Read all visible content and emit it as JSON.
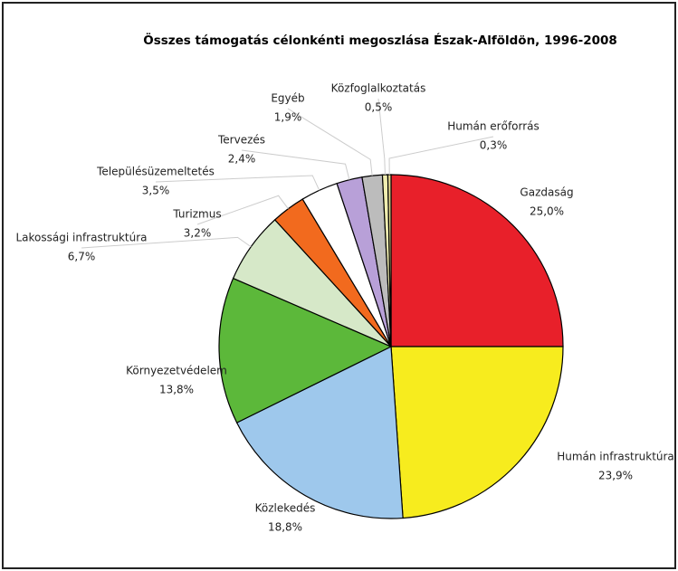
{
  "chart_data": {
    "type": "pie",
    "title": "Összes támogatás célonkénti megoszlása Észak-Alföldön, 1996-2008",
    "categories": [
      "Gazdaság",
      "Humán infrastruktúra",
      "Közlekedés",
      "Környezetvédelem",
      "Lakossági infrastruktúra",
      "Turizmus",
      "Településüzemeltetés",
      "Tervezés",
      "Egyéb",
      "Közfoglalkoztatás",
      "Humán erőforrás"
    ],
    "values": [
      25.0,
      23.9,
      18.8,
      13.8,
      6.7,
      3.2,
      3.5,
      2.4,
      1.9,
      0.5,
      0.3
    ],
    "value_labels": [
      "25,0%",
      "23,9%",
      "18,8%",
      "13,8%",
      "6,7%",
      "3,2%",
      "3,5%",
      "2,4%",
      "1,9%",
      "0,5%",
      "0,3%"
    ],
    "colors": [
      "#e8202a",
      "#f7ec1e",
      "#9ec8ec",
      "#5cb83a",
      "#d6e8c8",
      "#f26a1e",
      "#ffffff",
      "#b8a0d8",
      "#bcbcbc",
      "#f0eeb0",
      "#e0d890"
    ]
  }
}
